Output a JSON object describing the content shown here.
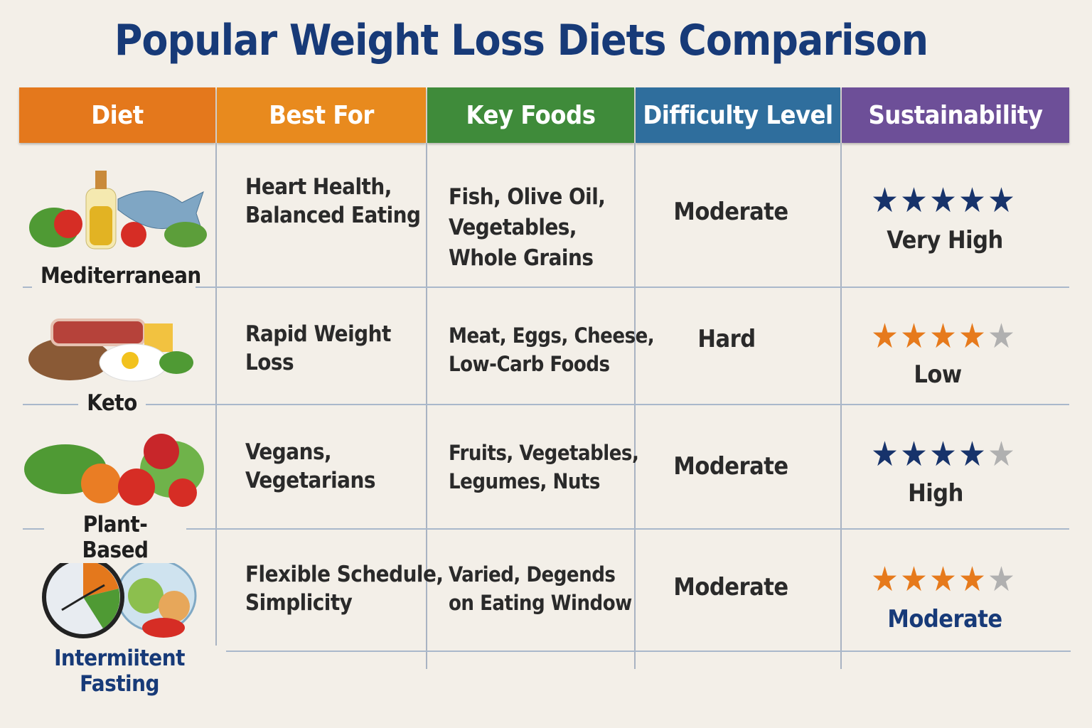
{
  "title": "Popular Weight Loss Diets Comparison",
  "columns": [
    {
      "label": "Diet",
      "color": "#e4781c"
    },
    {
      "label": "Best For",
      "color": "#e88a1e"
    },
    {
      "label": "Key Foods",
      "color": "#3f8b3a"
    },
    {
      "label": "Difficulty Level",
      "color": "#2f6e9d"
    },
    {
      "label": "Sustainability",
      "color": "#6d4f98"
    }
  ],
  "rows": [
    {
      "diet": "Mediterranean",
      "icon": "mediterranean-food-icon",
      "best_for": [
        "Heart Health,",
        "Balanced Eating"
      ],
      "key_foods": [
        "Fish, Olive Oil,",
        "Vegetables,",
        "Whole Grains"
      ],
      "difficulty": "Moderate",
      "rating": 5,
      "star_color": "#17336b",
      "sustainability": "Very High"
    },
    {
      "diet": "Keto",
      "icon": "keto-food-icon",
      "best_for": [
        "Rapid Weight",
        "Loss"
      ],
      "key_foods": [
        "Meat, Eggs, Cheese,",
        "Low-Carb Foods"
      ],
      "difficulty": "Hard",
      "rating": 4,
      "star_color": "#e67a1c",
      "sustainability": "Low"
    },
    {
      "diet": "Plant-Based",
      "icon": "plant-based-food-icon",
      "best_for": [
        "Vegans,",
        "Vegetarians"
      ],
      "key_foods": [
        "Fruits, Vegetables,",
        "Legumes, Nuts"
      ],
      "difficulty": "Moderate",
      "rating": 4,
      "star_color": "#17336b",
      "sustainability": "High"
    },
    {
      "diet": "Intermiitent Fasting",
      "icon": "clock-and-food-icon",
      "best_for": [
        "Flexible Schedule,",
        "Simplicity"
      ],
      "key_foods": [
        "Varied, Degends",
        "on Eating Window"
      ],
      "difficulty": "Moderate",
      "rating": 4,
      "star_color": "#e67a1c",
      "sustainability": "Moderate"
    }
  ],
  "colors": {
    "title": "#173a78",
    "empty_star": "#b0b0b0",
    "highlight_text": "#173a78"
  }
}
